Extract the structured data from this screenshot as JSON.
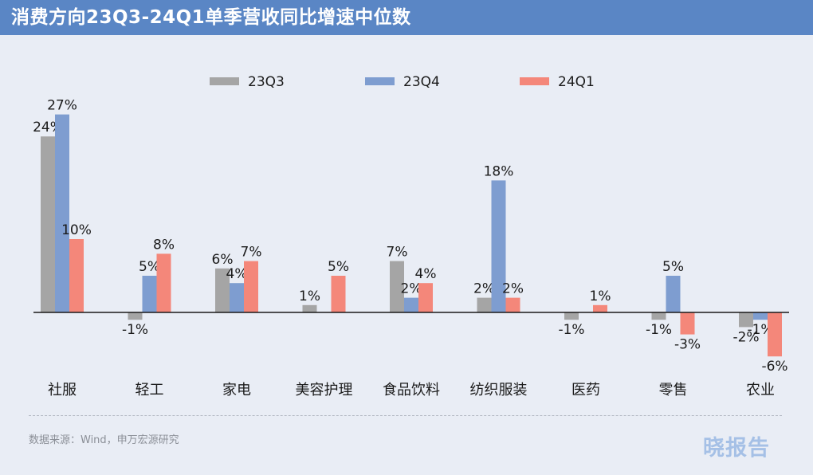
{
  "header": {
    "title": "消费方向23Q3-24Q1单季营收同比增速中位数"
  },
  "chart_data": {
    "type": "bar",
    "title": "消费方向23Q3-24Q1单季营收同比增速中位数",
    "categories": [
      "社服",
      "轻工",
      "家电",
      "美容护理",
      "食品饮料",
      "纺织服装",
      "医药",
      "零售",
      "农业"
    ],
    "series": [
      {
        "name": "23Q3",
        "color": "#a5a5a5",
        "values": [
          24,
          -1,
          6,
          1,
          7,
          2,
          -1,
          -1,
          -2
        ]
      },
      {
        "name": "23Q4",
        "color": "#7e9dd0",
        "values": [
          27,
          5,
          4,
          null,
          2,
          18,
          null,
          5,
          -1
        ]
      },
      {
        "name": "24Q1",
        "color": "#f4877a",
        "values": [
          10,
          8,
          7,
          5,
          4,
          2,
          1,
          -3,
          -6
        ]
      }
    ],
    "value_suffix": "%",
    "ylim": [
      -8,
      30
    ],
    "xlabel": "",
    "ylabel": "",
    "grid": false,
    "legend": "top"
  },
  "footer": {
    "source": "数据来源：Wind，申万宏源研究",
    "watermark": "晓报告"
  }
}
